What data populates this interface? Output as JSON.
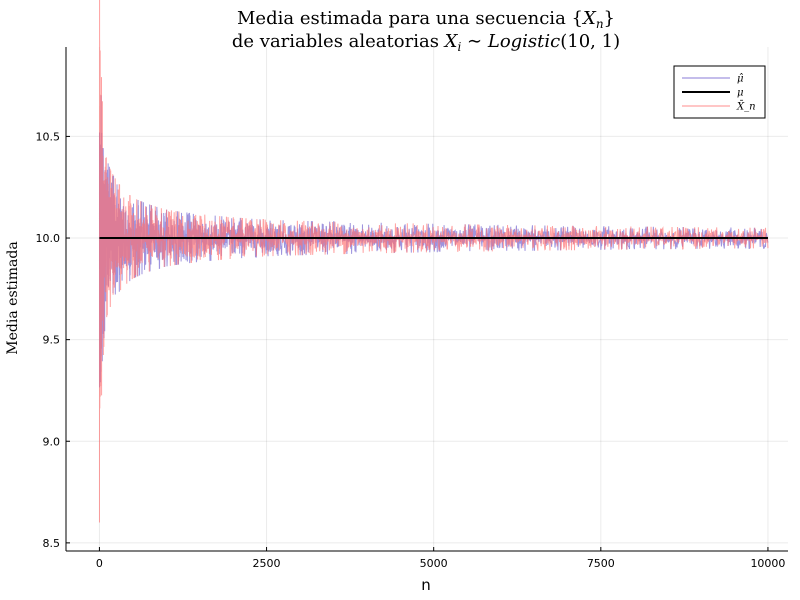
{
  "chart_data": {
    "type": "line",
    "title": [
      "Media estimada para una secuencia {X_n}",
      "de variables aleatorias X_i ~ Logistic(10,1)"
    ],
    "xlabel": "n",
    "ylabel": "Media estimada",
    "xlim": [
      -500,
      10300
    ],
    "ylim": [
      8.46,
      10.94
    ],
    "xticks": [
      0,
      2500,
      5000,
      7500,
      10000
    ],
    "xtick_labels": [
      "0",
      "2500",
      "5000",
      "7500",
      "10000"
    ],
    "yticks": [
      8.5,
      9.0,
      9.5,
      10.0,
      10.5
    ],
    "ytick_labels": [
      "8.5",
      "9.0",
      "9.5",
      "10.0",
      "10.5"
    ],
    "grid": true,
    "legend_position": "top-right",
    "series": [
      {
        "name": "μ̂",
        "color": "#6a5acd",
        "kind": "noise-band",
        "n_max": 10000,
        "center": 10.0,
        "envelope_points": [
          [
            1,
            0.75
          ],
          [
            30,
            0.7
          ],
          [
            100,
            0.4
          ],
          [
            500,
            0.2
          ],
          [
            1000,
            0.14
          ],
          [
            2500,
            0.09
          ],
          [
            5000,
            0.07
          ],
          [
            10000,
            0.05
          ]
        ]
      },
      {
        "name": "μ",
        "color": "#000000",
        "kind": "constant",
        "value": 10.0,
        "x_range": [
          1,
          10000
        ]
      },
      {
        "name": "X̄_n",
        "color": "#ff6f6f",
        "kind": "noise-band",
        "n_max": 10000,
        "center": 10.0,
        "envelope_points": [
          [
            1,
            1.4
          ],
          [
            30,
            0.8
          ],
          [
            100,
            0.4
          ],
          [
            500,
            0.2
          ],
          [
            1000,
            0.14
          ],
          [
            2500,
            0.09
          ],
          [
            5000,
            0.07
          ],
          [
            10000,
            0.05
          ]
        ]
      }
    ],
    "legend_entries": [
      "μ̂",
      "μ",
      "X̄_n"
    ]
  }
}
